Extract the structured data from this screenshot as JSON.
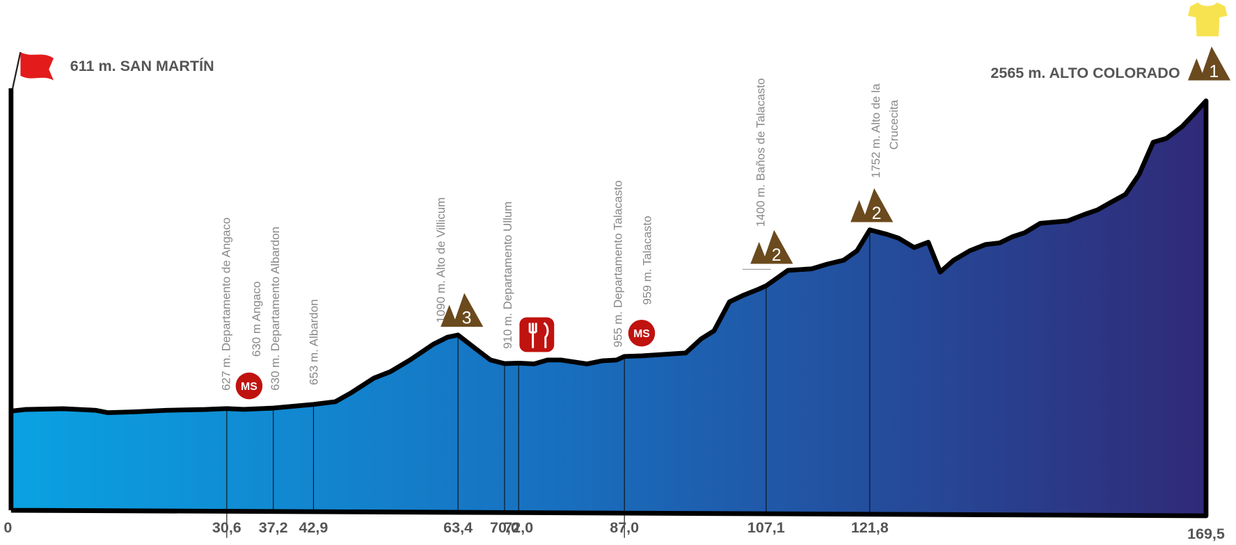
{
  "chart_data": {
    "type": "area",
    "start_label": "611 m. SAN MARTÍN",
    "finish_label": "2565 m. ALTO COLORADO",
    "x": [
      0,
      2,
      7.4,
      12,
      13.7,
      17.4,
      22,
      27.5,
      30.6,
      33,
      37.2,
      42.9,
      46,
      48.2,
      51.5,
      53.8,
      56.6,
      59.9,
      61.9,
      63.4,
      66.1,
      68,
      70,
      72,
      74.2,
      76.1,
      78,
      81.7,
      83.9,
      85.9,
      87,
      89.5,
      95.7,
      97.9,
      99.7,
      101.9,
      103.8,
      106,
      107.1,
      110.2,
      113.6,
      115.8,
      118.1,
      120,
      121.8,
      124.2,
      125.9,
      128.1,
      130.1,
      131.8,
      133.7,
      136,
      138.2,
      140.2,
      142.1,
      143.8,
      146,
      149.9,
      152.2,
      154.1,
      156.1,
      158.1,
      160,
      162,
      163.9,
      166.1,
      167.8,
      169.5
    ],
    "values": [
      611,
      621,
      626,
      616,
      601,
      606,
      616,
      621,
      627,
      622,
      630,
      653,
      670,
      725,
      819,
      859,
      933,
      1032,
      1076,
      1090,
      997,
      933,
      910,
      913,
      908,
      933,
      933,
      908,
      928,
      933,
      955,
      959,
      977,
      1066,
      1116,
      1299,
      1339,
      1378,
      1400,
      1497,
      1507,
      1537,
      1561,
      1621,
      1752,
      1725,
      1700,
      1641,
      1675,
      1487,
      1561,
      1621,
      1660,
      1670,
      1710,
      1735,
      1794,
      1809,
      1849,
      1878,
      1928,
      1977,
      2101,
      2304,
      2329,
      2403,
      2482,
      2565
    ],
    "xlim": [
      0,
      169.5
    ],
    "xticks": [
      0,
      {
        "value": 30.6,
        "label": "30,6"
      },
      {
        "value": 37.2,
        "label": "37,2"
      },
      {
        "value": 42.9,
        "label": "42,9"
      },
      {
        "value": 63.4,
        "label": "63,4"
      },
      {
        "value": 70.0,
        "label": "70,0"
      },
      {
        "value": 72.0,
        "label": "72,0"
      },
      {
        "value": 87.0,
        "label": "87,0"
      },
      {
        "value": 107.1,
        "label": "107,1"
      },
      {
        "value": 121.8,
        "label": "121,8"
      },
      {
        "value": 169.5,
        "label": "169,5"
      }
    ],
    "pois": [
      [
        "627 m. Departamento de Angaco"
      ],
      [
        "630 m Angaco"
      ],
      [
        "630 m. Departamento Albardon"
      ],
      [
        "653 m. Albardon"
      ],
      [
        "1090 m. Alto de Villicum"
      ],
      [
        "910 m. Departamento Ullum"
      ],
      [
        "955 m. Departamento Talacasto"
      ],
      [
        "959 m. Talacasto"
      ],
      [
        "1400 m. Baños de Talacasto"
      ],
      [
        "1752 m. Alto de la",
        "Crucecita"
      ]
    ],
    "sprints": [
      "MS",
      "MS"
    ],
    "climbs": [
      "3",
      "2",
      "2",
      "1"
    ]
  }
}
